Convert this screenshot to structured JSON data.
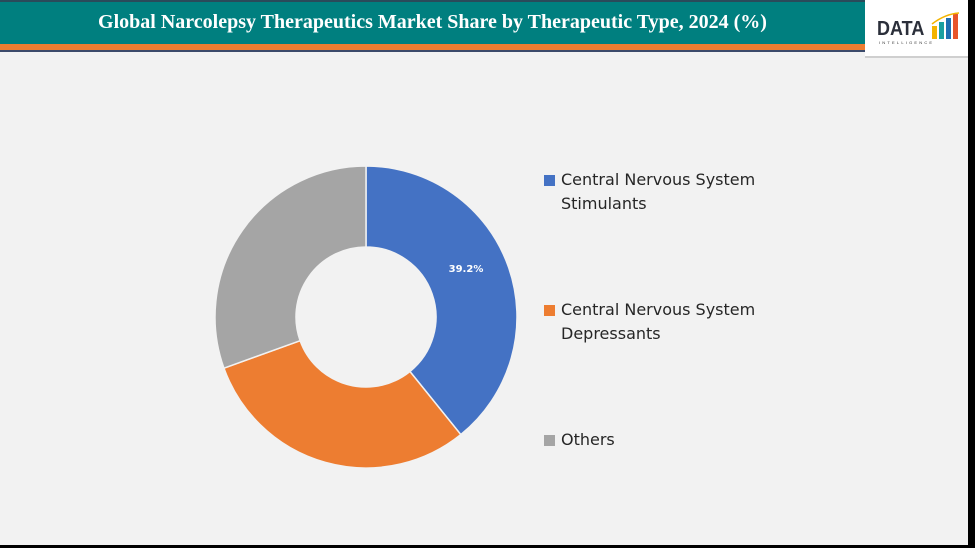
{
  "header": {
    "title": "Global Narcolepsy Therapeutics Market Share by Therapeutic Type, 2024 (%)",
    "logo_main": "DATA",
    "logo_sub": "INTELLIGENCE"
  },
  "colors": {
    "header_bg": "#007f7f",
    "accent_bar": "#ed7d31",
    "background": "#f2f2f2",
    "series": [
      "#4472c4",
      "#ed7d31",
      "#a5a5a5"
    ]
  },
  "legend": {
    "items": [
      {
        "label": "Central Nervous System Stimulants",
        "line1": "Central Nervous System",
        "line2": "Stimulants",
        "color": "#4472c4"
      },
      {
        "label": "Central Nervous System Depressants",
        "line1": "Central Nervous System",
        "line2": "Depressants",
        "color": "#ed7d31"
      },
      {
        "label": "Others",
        "line1": "Others",
        "line2": "",
        "color": "#a5a5a5"
      }
    ]
  },
  "data_labels": {
    "stimulants": "39.2%"
  },
  "chart_data": {
    "type": "pie",
    "variant": "donut",
    "title": "Global Narcolepsy Therapeutics Market Share by Therapeutic Type, 2024 (%)",
    "categories": [
      "Central Nervous System Stimulants",
      "Central Nervous System Depressants",
      "Others"
    ],
    "values": [
      39.2,
      30.3,
      30.5
    ],
    "labeled_values": {
      "Central Nervous System Stimulants": 39.2
    },
    "unit": "%",
    "legend_position": "right",
    "start_angle_deg": 0,
    "direction": "clockwise"
  }
}
